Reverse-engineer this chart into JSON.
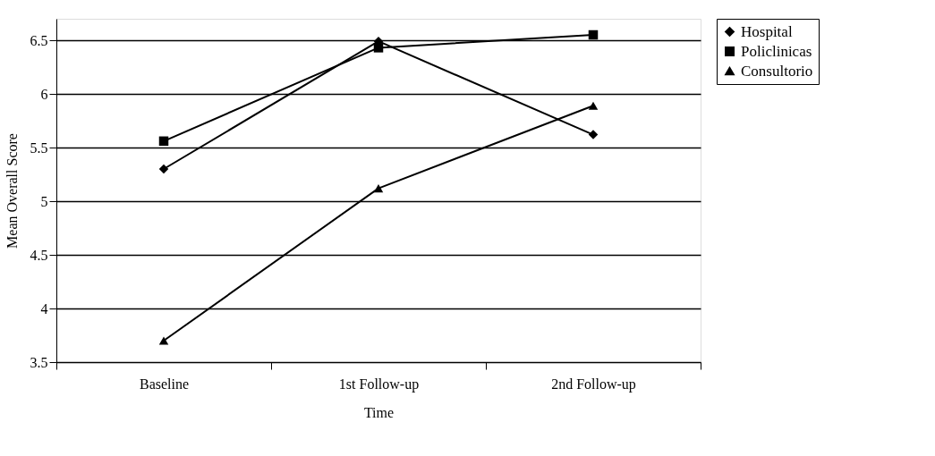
{
  "chart_data": {
    "type": "line",
    "xlabel": "Time",
    "ylabel": "Mean Overall Score",
    "categories": [
      "Baseline",
      "1st Follow-up",
      "2nd Follow-up"
    ],
    "series": [
      {
        "name": "Hospital",
        "color": "#000000",
        "marker": "diamond",
        "values": [
          5.3,
          6.49,
          5.62
        ]
      },
      {
        "name": "Policlinicas",
        "color": "#000000",
        "marker": "square",
        "values": [
          5.56,
          6.43,
          6.55
        ]
      },
      {
        "name": "Consultorio",
        "color": "#000000",
        "marker": "triangle",
        "values": [
          3.7,
          5.12,
          5.89
        ]
      }
    ],
    "ylim": [
      3.5,
      6.7
    ],
    "yticks": [
      3.5,
      4,
      4.5,
      5,
      5.5,
      6,
      6.5
    ],
    "grid": "y",
    "legend": "right",
    "line_style": "solid"
  }
}
